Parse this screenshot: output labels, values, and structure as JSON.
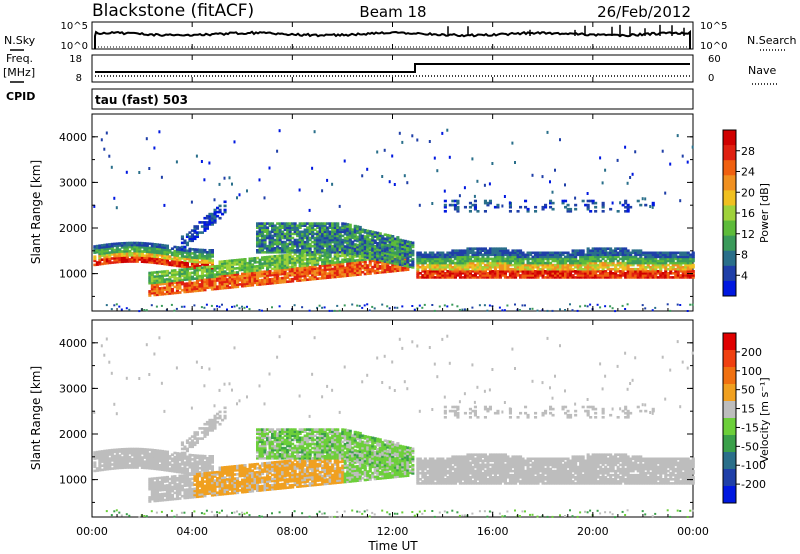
{
  "header": {
    "station": "Blackstone (fitACF)",
    "beam": "Beam 18",
    "date": "26/Feb/2012"
  },
  "left_labels": {
    "nsky": "N.Sky",
    "freq": "Freq.",
    "mhz": "[MHz]",
    "cpid": "CPID"
  },
  "right_labels": {
    "nsearch": "N.Search",
    "nave": "Nave"
  },
  "cpid_text": "tau (fast) 503",
  "noise_panel": {
    "left_ticks": [
      "10^5",
      "10^0"
    ],
    "right_ticks": [
      "10^5",
      "10^0"
    ]
  },
  "freq_panel": {
    "left_ticks": [
      "18",
      "8"
    ],
    "right_ticks": [
      "60",
      "0"
    ]
  },
  "xaxis": {
    "label": "Time UT",
    "ticks": [
      "00:00",
      "04:00",
      "08:00",
      "12:00",
      "16:00",
      "20:00",
      "00:00"
    ]
  },
  "chart_data": [
    {
      "type": "heatmap",
      "title": "",
      "xlabel": "Time UT",
      "ylabel": "Slant Range [km]",
      "ylim": [
        180,
        4500
      ],
      "yticks": [
        "4000",
        "3000",
        "2000",
        "1000"
      ],
      "colorbar": {
        "label": "Power [dB]",
        "ticks": [
          "28",
          "24",
          "20",
          "16",
          "12",
          "8",
          "4"
        ],
        "colors": [
          "#0018e0",
          "#1f3fa8",
          "#2a6f8a",
          "#3a9a5a",
          "#5dbb3a",
          "#9fd23a",
          "#f0c020",
          "#f09020",
          "#f06010",
          "#e02010",
          "#d00000"
        ],
        "range": [
          0,
          31
        ]
      }
    },
    {
      "type": "heatmap",
      "title": "",
      "xlabel": "Time UT",
      "ylabel": "Slant Range [km]",
      "ylim": [
        180,
        4500
      ],
      "yticks": [
        "4000",
        "3000",
        "2000",
        "1000"
      ],
      "colorbar": {
        "label": "Velocity [m s^-1]",
        "ticks": [
          "200",
          "100",
          "50",
          "15",
          "-15",
          "-50",
          "-100",
          "-200"
        ],
        "colors": [
          "#0018e0",
          "#1f3fa8",
          "#2a6f8a",
          "#3aa04a",
          "#6ccf3a",
          "#bdbdbd",
          "#f0a020",
          "#f07010",
          "#f04010",
          "#e00000"
        ]
      }
    }
  ]
}
